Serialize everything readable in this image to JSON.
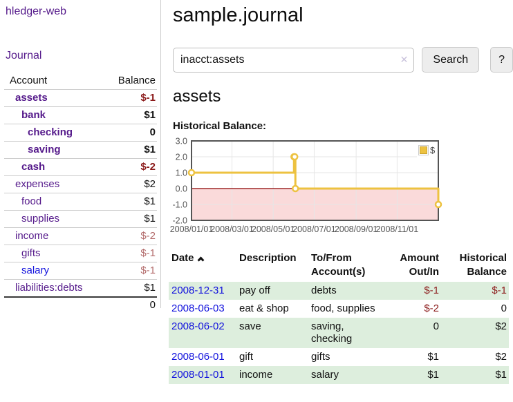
{
  "sidebar": {
    "app_title": "hledger-web",
    "journal_label": "Journal",
    "table": {
      "account_header": "Account",
      "balance_header": "Balance",
      "rows": [
        {
          "name": "assets",
          "balance": "$-1"
        },
        {
          "name": "bank",
          "balance": "$1"
        },
        {
          "name": "checking",
          "balance": "0"
        },
        {
          "name": "saving",
          "balance": "$1"
        },
        {
          "name": "cash",
          "balance": "$-2"
        },
        {
          "name": "expenses",
          "balance": "$2"
        },
        {
          "name": "food",
          "balance": "$1"
        },
        {
          "name": "supplies",
          "balance": "$1"
        },
        {
          "name": "income",
          "balance": "$-2"
        },
        {
          "name": "gifts",
          "balance": "$-1"
        },
        {
          "name": "salary",
          "balance": "$-1"
        },
        {
          "name": "liabilities:debts",
          "balance": "$1"
        }
      ],
      "total": "0"
    }
  },
  "header": {
    "title": "sample.journal"
  },
  "search": {
    "query": "inacct:assets",
    "button_label": "Search",
    "help_label": "?"
  },
  "icons": {
    "clear": "✕",
    "sort_ascending": "chevron-up"
  },
  "account_page": {
    "heading": "assets",
    "chart_title": "Historical Balance:"
  },
  "chart_data": {
    "type": "line",
    "title": "Historical Balance:",
    "step": true,
    "ylim": [
      -2,
      3
    ],
    "grid": true,
    "legend_position": "top-right",
    "series": [
      {
        "name": "$",
        "color": "#edc240",
        "points_x_frac_of_year": [
          0,
          0.4153,
          0.418,
          0.4208,
          1.0
        ],
        "points_dates": [
          "2008-01-01",
          "2008-06-01",
          "2008-06-02",
          "2008-06-03",
          "2008-12-31"
        ],
        "values": [
          1,
          2,
          2,
          0,
          -1
        ]
      }
    ],
    "y_ticks": [
      {
        "v": 3,
        "label": "3.0"
      },
      {
        "v": 2,
        "label": "2.0"
      },
      {
        "v": 1,
        "label": "1.0"
      },
      {
        "v": 0,
        "label": "0.0"
      },
      {
        "v": -1,
        "label": "-1.0"
      },
      {
        "v": -2,
        "label": "-2.0"
      }
    ],
    "x_ticks": [
      {
        "f": 0,
        "label": "2008/01/01"
      },
      {
        "f": 0.164,
        "label": "2008/03/01"
      },
      {
        "f": 0.331,
        "label": "2008/05/01"
      },
      {
        "f": 0.497,
        "label": "2008/07/01"
      },
      {
        "f": 0.667,
        "label": "2008/09/01"
      },
      {
        "f": 0.833,
        "label": "2008/11/01"
      }
    ],
    "negative_region_fill": "#fadada",
    "zero_line_color": "#8b0000",
    "grid_color": "#e6e6e6",
    "border_color": "#545454"
  },
  "register": {
    "columns": {
      "date": "Date",
      "description": "Description",
      "accounts": "To/From Account(s)",
      "amount": "Amount Out/In",
      "balance": "Historical Balance"
    },
    "rows": [
      {
        "date": "2008-12-31",
        "description": "pay off",
        "accounts": "debts",
        "amount": "$-1",
        "balance": "$-1"
      },
      {
        "date": "2008-06-03",
        "description": "eat & shop",
        "accounts": "food, supplies",
        "amount": "$-2",
        "balance": "0"
      },
      {
        "date": "2008-06-02",
        "description": "save",
        "accounts": "saving, checking",
        "amount": "0",
        "balance": "$2"
      },
      {
        "date": "2008-06-01",
        "description": "gift",
        "accounts": "gifts",
        "amount": "$1",
        "balance": "$2"
      },
      {
        "date": "2008-01-01",
        "description": "income",
        "accounts": "salary",
        "amount": "$1",
        "balance": "$1"
      }
    ]
  },
  "colors": {
    "link_visited_purple": "#551a8b",
    "link_blue": "#1111dd",
    "negative_red": "#8b1a1a",
    "negative_dim_red": "#b36b6b",
    "row_stripe_green": "#ddeedd",
    "series_gold": "#edc240"
  }
}
